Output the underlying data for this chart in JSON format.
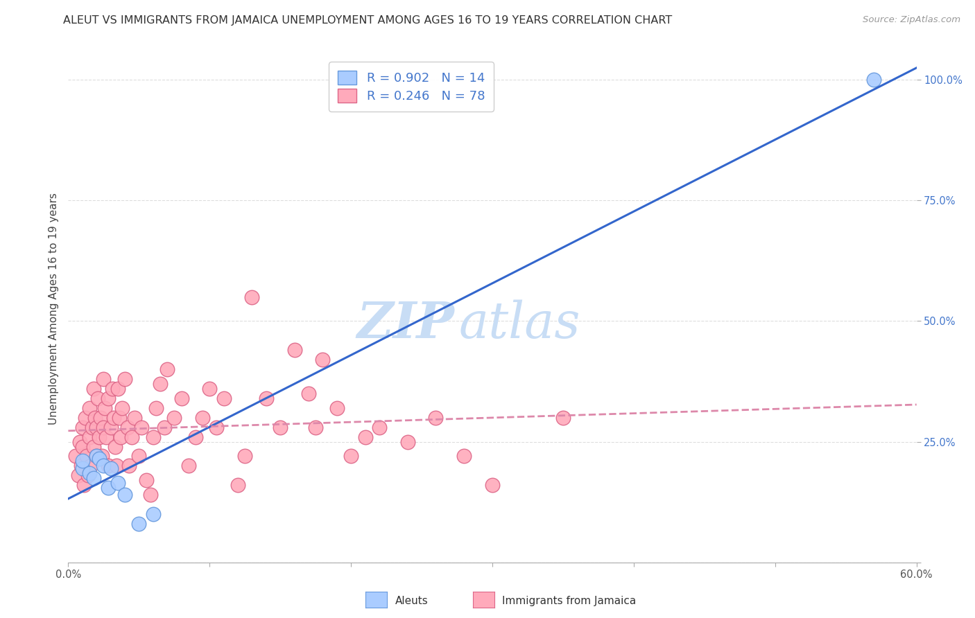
{
  "title": "ALEUT VS IMMIGRANTS FROM JAMAICA UNEMPLOYMENT AMONG AGES 16 TO 19 YEARS CORRELATION CHART",
  "source": "Source: ZipAtlas.com",
  "ylabel_label": "Unemployment Among Ages 16 to 19 years",
  "x_min": 0.0,
  "x_max": 0.6,
  "y_min": 0.0,
  "y_max": 1.05,
  "x_ticks": [
    0.0,
    0.1,
    0.2,
    0.3,
    0.4,
    0.5,
    0.6
  ],
  "x_tick_labels": [
    "0.0%",
    "",
    "",
    "",
    "",
    "",
    "60.0%"
  ],
  "y_ticks": [
    0.0,
    0.25,
    0.5,
    0.75,
    1.0
  ],
  "y_tick_labels": [
    "",
    "25.0%",
    "50.0%",
    "75.0%",
    "100.0%"
  ],
  "watermark_zip": "ZIP",
  "watermark_atlas": "atlas",
  "aleut_color": "#aaccff",
  "aleut_edge_color": "#6699dd",
  "jamaica_color": "#ffaabb",
  "jamaica_edge_color": "#dd6688",
  "regression_aleut_color": "#3366cc",
  "regression_jamaica_color": "#dd88aa",
  "R_aleut": 0.902,
  "N_aleut": 14,
  "R_jamaica": 0.246,
  "N_jamaica": 78,
  "aleut_x": [
    0.01,
    0.01,
    0.015,
    0.018,
    0.02,
    0.022,
    0.025,
    0.028,
    0.03,
    0.035,
    0.04,
    0.05,
    0.06,
    0.57
  ],
  "aleut_y": [
    0.195,
    0.21,
    0.185,
    0.175,
    0.22,
    0.215,
    0.2,
    0.155,
    0.195,
    0.165,
    0.14,
    0.08,
    0.1,
    1.0
  ],
  "jamaica_x": [
    0.005,
    0.007,
    0.008,
    0.009,
    0.01,
    0.01,
    0.011,
    0.012,
    0.013,
    0.014,
    0.015,
    0.015,
    0.016,
    0.017,
    0.018,
    0.018,
    0.019,
    0.02,
    0.02,
    0.021,
    0.022,
    0.023,
    0.024,
    0.025,
    0.025,
    0.026,
    0.027,
    0.028,
    0.028,
    0.03,
    0.031,
    0.032,
    0.033,
    0.034,
    0.035,
    0.036,
    0.037,
    0.038,
    0.04,
    0.042,
    0.043,
    0.045,
    0.047,
    0.05,
    0.052,
    0.055,
    0.058,
    0.06,
    0.062,
    0.065,
    0.068,
    0.07,
    0.075,
    0.08,
    0.085,
    0.09,
    0.095,
    0.1,
    0.105,
    0.11,
    0.12,
    0.125,
    0.13,
    0.14,
    0.15,
    0.16,
    0.17,
    0.175,
    0.18,
    0.19,
    0.2,
    0.21,
    0.22,
    0.24,
    0.26,
    0.28,
    0.3,
    0.35
  ],
  "jamaica_y": [
    0.22,
    0.18,
    0.25,
    0.2,
    0.24,
    0.28,
    0.16,
    0.3,
    0.22,
    0.18,
    0.26,
    0.32,
    0.2,
    0.28,
    0.24,
    0.36,
    0.3,
    0.22,
    0.28,
    0.34,
    0.26,
    0.3,
    0.22,
    0.28,
    0.38,
    0.32,
    0.26,
    0.34,
    0.2,
    0.28,
    0.36,
    0.3,
    0.24,
    0.2,
    0.36,
    0.3,
    0.26,
    0.32,
    0.38,
    0.28,
    0.2,
    0.26,
    0.3,
    0.22,
    0.28,
    0.17,
    0.14,
    0.26,
    0.32,
    0.37,
    0.28,
    0.4,
    0.3,
    0.34,
    0.2,
    0.26,
    0.3,
    0.36,
    0.28,
    0.34,
    0.16,
    0.22,
    0.55,
    0.34,
    0.28,
    0.44,
    0.35,
    0.28,
    0.42,
    0.32,
    0.22,
    0.26,
    0.28,
    0.25,
    0.3,
    0.22,
    0.16,
    0.3
  ],
  "background_color": "#ffffff",
  "grid_color": "#dddddd",
  "title_fontsize": 11.5,
  "axis_label_fontsize": 11,
  "tick_fontsize": 10.5,
  "legend_fontsize": 13,
  "watermark_fontsize_zip": 52,
  "watermark_fontsize_atlas": 52,
  "watermark_color_zip": "#c8ddf5",
  "watermark_color_atlas": "#c8ddf5"
}
